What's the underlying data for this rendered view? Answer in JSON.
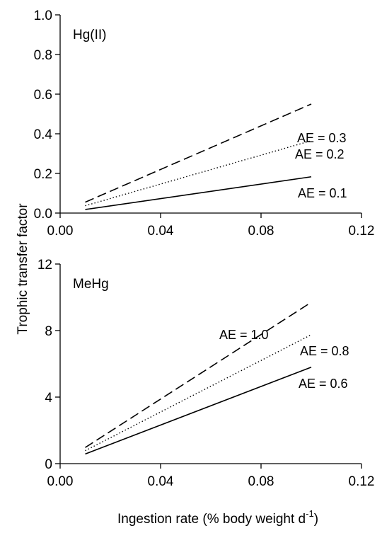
{
  "chart_data": [
    {
      "type": "line",
      "panel_label": "Hg(II)",
      "xlim": [
        0,
        0.12
      ],
      "ylim": [
        0,
        1.0
      ],
      "xticks": [
        "0.00",
        "0.04",
        "0.08",
        "0.12"
      ],
      "xtick_values": [
        0,
        0.04,
        0.08,
        0.12
      ],
      "yticks": [
        "0.0",
        "0.2",
        "0.4",
        "0.6",
        "0.8",
        "1.0"
      ],
      "ytick_values": [
        0,
        0.2,
        0.4,
        0.6,
        0.8,
        1.0
      ],
      "series": [
        {
          "name": "AE = 0.3",
          "style": "dashed",
          "x": [
            0.01,
            0.1
          ],
          "y": [
            0.055,
            0.55
          ]
        },
        {
          "name": "AE = 0.2",
          "style": "dotted",
          "x": [
            0.01,
            0.1
          ],
          "y": [
            0.037,
            0.365
          ]
        },
        {
          "name": "AE = 0.1",
          "style": "solid",
          "x": [
            0.01,
            0.1
          ],
          "y": [
            0.018,
            0.183
          ]
        }
      ]
    },
    {
      "type": "line",
      "panel_label": "MeHg",
      "xlim": [
        0,
        0.12
      ],
      "ylim": [
        0,
        12
      ],
      "xticks": [
        "0.00",
        "0.04",
        "0.08",
        "0.12"
      ],
      "xtick_values": [
        0,
        0.04,
        0.08,
        0.12
      ],
      "yticks": [
        "0",
        "4",
        "8",
        "12"
      ],
      "ytick_values": [
        0,
        4,
        8,
        12
      ],
      "series": [
        {
          "name": "AE = 1.0",
          "style": "dashed",
          "x": [
            0.01,
            0.1
          ],
          "y": [
            0.97,
            9.7
          ]
        },
        {
          "name": "AE = 0.8",
          "style": "dotted",
          "x": [
            0.01,
            0.1
          ],
          "y": [
            0.78,
            7.75
          ]
        },
        {
          "name": "AE = 0.6",
          "style": "solid",
          "x": [
            0.01,
            0.1
          ],
          "y": [
            0.58,
            5.8
          ]
        }
      ]
    }
  ],
  "axes": {
    "ylabel": "Trophic transfer factor",
    "xlabel_main": "Ingestion rate (% body weight d",
    "xlabel_sup": "-1",
    "xlabel_close": ")"
  }
}
